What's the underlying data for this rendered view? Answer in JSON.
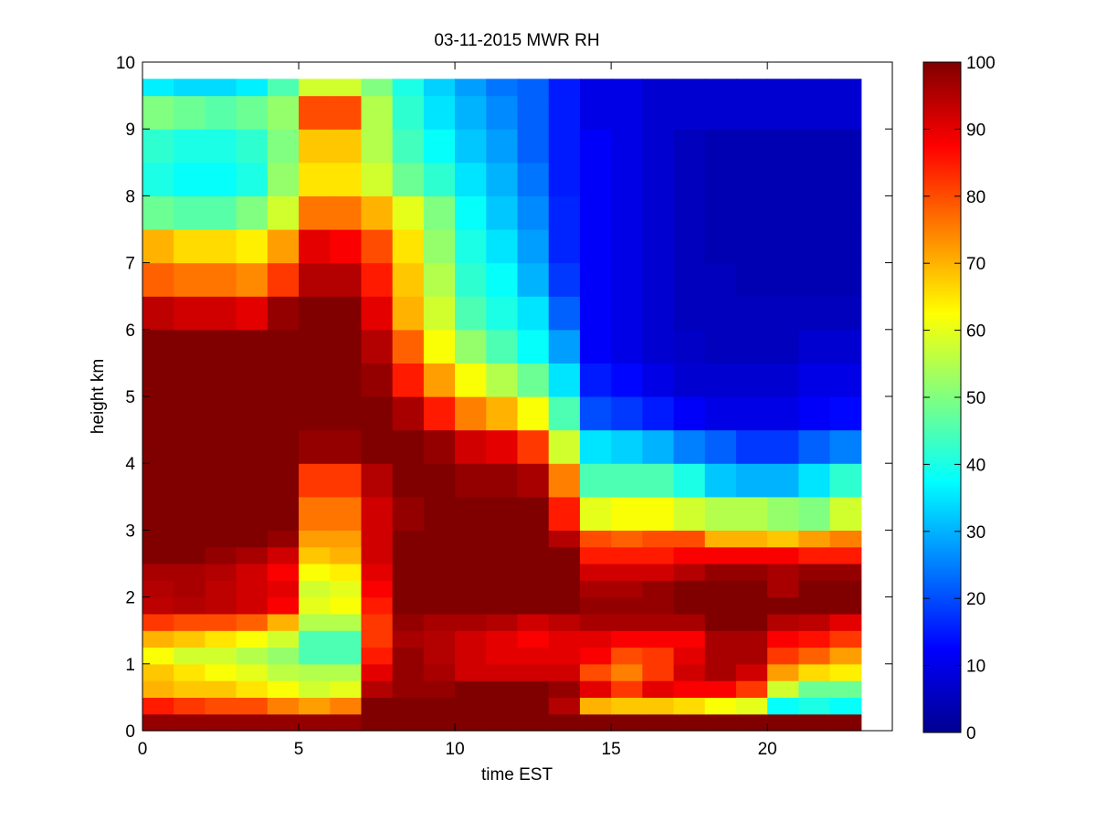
{
  "chart_data": {
    "type": "heatmap",
    "title": "03-11-2015 MWR RH",
    "xlabel": "time EST",
    "ylabel": "height km",
    "xlim": [
      0,
      24
    ],
    "ylim": [
      0,
      10
    ],
    "xticks": [
      0,
      5,
      10,
      15,
      20
    ],
    "yticks": [
      0,
      1,
      2,
      3,
      4,
      5,
      6,
      7,
      8,
      9,
      10
    ],
    "colorbar": {
      "min": 0,
      "max": 100,
      "ticks": [
        0,
        10,
        20,
        30,
        40,
        50,
        60,
        70,
        80,
        90,
        100
      ],
      "colormap": "jet"
    },
    "x_bin_width_hours": 1,
    "x_bins_start": [
      0,
      1,
      2,
      3,
      4,
      5,
      6,
      7,
      8,
      9,
      10,
      11,
      12,
      13,
      14,
      15,
      16,
      17,
      18,
      19,
      20,
      21,
      22
    ],
    "y_bin_edges_km": [
      0,
      0.25,
      0.5,
      0.75,
      1.0,
      1.25,
      1.5,
      1.75,
      2.0,
      2.25,
      2.5,
      2.75,
      3.0,
      3.5,
      4.0,
      4.5,
      5.0,
      5.5,
      6.0,
      6.5,
      7.0,
      7.5,
      8.0,
      8.5,
      9.0,
      9.5,
      9.75
    ],
    "z_description": "relative humidity (%), rows = height bins bottom to top, columns = hourly time bins",
    "z": [
      [
        98,
        98,
        98,
        98,
        98,
        98,
        98,
        100,
        100,
        100,
        100,
        100,
        100,
        100,
        100,
        100,
        100,
        100,
        100,
        100,
        100,
        100,
        100
      ],
      [
        85,
        82,
        80,
        80,
        75,
        72,
        75,
        100,
        100,
        100,
        100,
        100,
        100,
        95,
        70,
        68,
        68,
        66,
        62,
        60,
        38,
        40,
        38
      ],
      [
        70,
        68,
        68,
        65,
        62,
        58,
        60,
        95,
        98,
        98,
        100,
        100,
        100,
        98,
        90,
        82,
        90,
        88,
        88,
        82,
        58,
        48,
        48
      ],
      [
        68,
        65,
        62,
        60,
        56,
        55,
        55,
        90,
        98,
        96,
        92,
        92,
        92,
        92,
        80,
        75,
        82,
        92,
        96,
        92,
        72,
        66,
        64
      ],
      [
        62,
        58,
        58,
        55,
        52,
        45,
        45,
        85,
        98,
        95,
        92,
        90,
        90,
        90,
        88,
        80,
        82,
        90,
        96,
        96,
        82,
        78,
        72
      ],
      [
        70,
        68,
        65,
        62,
        58,
        45,
        45,
        82,
        96,
        95,
        92,
        90,
        88,
        90,
        90,
        88,
        88,
        88,
        96,
        96,
        88,
        86,
        82
      ],
      [
        82,
        80,
        80,
        78,
        70,
        55,
        55,
        82,
        98,
        96,
        96,
        95,
        92,
        94,
        96,
        96,
        96,
        96,
        100,
        100,
        95,
        94,
        90
      ],
      [
        94,
        95,
        94,
        92,
        88,
        60,
        62,
        85,
        100,
        100,
        100,
        100,
        100,
        100,
        98,
        98,
        98,
        100,
        100,
        100,
        100,
        100,
        100
      ],
      [
        95,
        96,
        94,
        92,
        90,
        58,
        60,
        88,
        100,
        100,
        100,
        100,
        100,
        100,
        96,
        96,
        98,
        100,
        100,
        100,
        96,
        100,
        100
      ],
      [
        96,
        96,
        95,
        92,
        88,
        62,
        64,
        90,
        100,
        100,
        100,
        100,
        100,
        100,
        92,
        92,
        92,
        95,
        98,
        98,
        96,
        98,
        98
      ],
      [
        100,
        100,
        98,
        96,
        92,
        68,
        70,
        92,
        100,
        100,
        100,
        100,
        100,
        100,
        85,
        85,
        85,
        88,
        88,
        88,
        88,
        85,
        85
      ],
      [
        100,
        100,
        100,
        100,
        98,
        72,
        72,
        92,
        100,
        100,
        100,
        100,
        100,
        95,
        80,
        78,
        80,
        80,
        70,
        70,
        68,
        72,
        75
      ],
      [
        100,
        100,
        100,
        100,
        100,
        76,
        76,
        92,
        98,
        100,
        100,
        100,
        100,
        85,
        60,
        62,
        62,
        58,
        55,
        55,
        52,
        50,
        58
      ],
      [
        100,
        100,
        100,
        100,
        100,
        82,
        82,
        95,
        100,
        100,
        98,
        98,
        96,
        75,
        45,
        45,
        45,
        40,
        32,
        30,
        30,
        35,
        42
      ],
      [
        100,
        100,
        100,
        100,
        100,
        98,
        98,
        100,
        100,
        98,
        92,
        90,
        82,
        58,
        35,
        33,
        30,
        25,
        22,
        18,
        18,
        22,
        25
      ],
      [
        100,
        100,
        100,
        100,
        100,
        100,
        100,
        100,
        96,
        85,
        75,
        70,
        62,
        45,
        20,
        18,
        15,
        12,
        10,
        10,
        10,
        12,
        13
      ],
      [
        100,
        100,
        100,
        100,
        100,
        100,
        100,
        98,
        85,
        72,
        62,
        55,
        48,
        35,
        15,
        13,
        10,
        8,
        8,
        8,
        8,
        10,
        10
      ],
      [
        100,
        100,
        100,
        100,
        100,
        100,
        100,
        95,
        78,
        62,
        52,
        45,
        38,
        28,
        12,
        10,
        8,
        7,
        6,
        6,
        6,
        8,
        8
      ],
      [
        94,
        92,
        92,
        90,
        98,
        100,
        100,
        90,
        70,
        58,
        45,
        40,
        35,
        22,
        12,
        10,
        8,
        6,
        6,
        6,
        6,
        6,
        6
      ],
      [
        78,
        76,
        76,
        74,
        82,
        95,
        95,
        85,
        68,
        55,
        42,
        38,
        30,
        18,
        12,
        10,
        8,
        6,
        6,
        5,
        5,
        5,
        5
      ],
      [
        70,
        66,
        66,
        64,
        72,
        90,
        88,
        80,
        65,
        52,
        40,
        35,
        28,
        16,
        12,
        10,
        8,
        6,
        5,
        5,
        5,
        5,
        5
      ],
      [
        48,
        46,
        46,
        50,
        58,
        76,
        76,
        70,
        60,
        50,
        38,
        32,
        26,
        16,
        12,
        10,
        8,
        6,
        5,
        5,
        5,
        5,
        5
      ],
      [
        40,
        38,
        38,
        40,
        52,
        65,
        65,
        58,
        48,
        42,
        35,
        30,
        24,
        15,
        12,
        10,
        8,
        6,
        5,
        5,
        5,
        5,
        5
      ],
      [
        42,
        40,
        40,
        42,
        50,
        68,
        68,
        55,
        44,
        38,
        32,
        28,
        22,
        15,
        12,
        10,
        8,
        6,
        5,
        5,
        5,
        5,
        5
      ],
      [
        50,
        48,
        46,
        48,
        52,
        80,
        80,
        55,
        42,
        35,
        30,
        26,
        22,
        15,
        10,
        10,
        8,
        8,
        8,
        8,
        8,
        8,
        8
      ],
      [
        36,
        34,
        34,
        36,
        45,
        58,
        58,
        50,
        40,
        33,
        28,
        24,
        22,
        15,
        10,
        10,
        8,
        8,
        8,
        8,
        8,
        8,
        8
      ]
    ]
  }
}
